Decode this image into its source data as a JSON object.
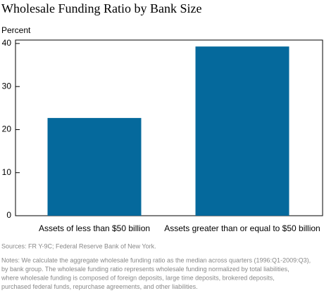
{
  "chart_data": {
    "type": "bar",
    "title": "Wholesale Funding Ratio by Bank Size",
    "y_label": "Percent",
    "categories": [
      "Assets of less than $50 billion",
      "Assets greater than or equal to $50 billion"
    ],
    "values": [
      22.7,
      39.3
    ],
    "color": "#05699c",
    "ylim": [
      0,
      40.8
    ],
    "yticks": [
      0,
      10,
      20,
      30,
      40
    ],
    "source": "Sources: FR Y-9C; Federal Reserve Bank of New York.",
    "notes": [
      "Notes: We calculate the aggregate wholesale funding ratio as the median across quarters (1996:Q1-2009:Q3),",
      "by bank group. The wholesale funding ratio represents wholesale funding normalized by total liabilities,",
      "where wholesale funding is composed of foreign deposits, large time deposits, brokered deposits,",
      "purchased federal funds, repurchase agreements, and other liabilities."
    ]
  }
}
